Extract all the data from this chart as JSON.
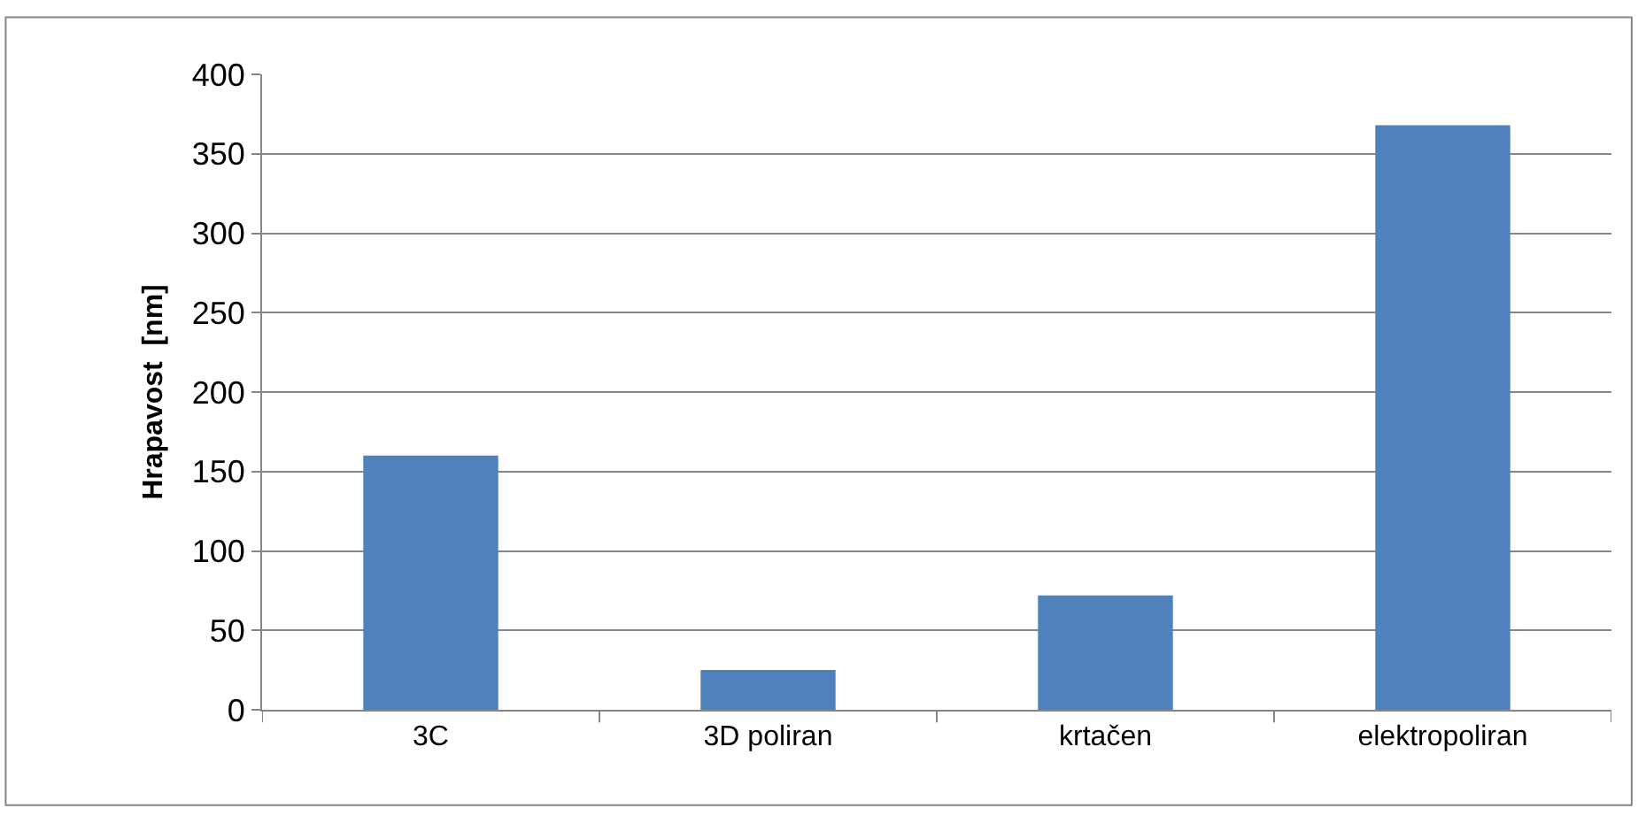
{
  "chart_data": {
    "type": "bar",
    "ylabel": "Hrapavost  [nm]",
    "categories": [
      "3C",
      "3D poliran",
      "krtačen",
      "elektropoliran"
    ],
    "values": [
      160,
      25,
      72,
      368
    ],
    "color": "#4f81bd",
    "ylim": [
      0,
      400
    ],
    "yticks": [
      0,
      50,
      100,
      150,
      200,
      250,
      300,
      350,
      400
    ],
    "grid": "y"
  }
}
